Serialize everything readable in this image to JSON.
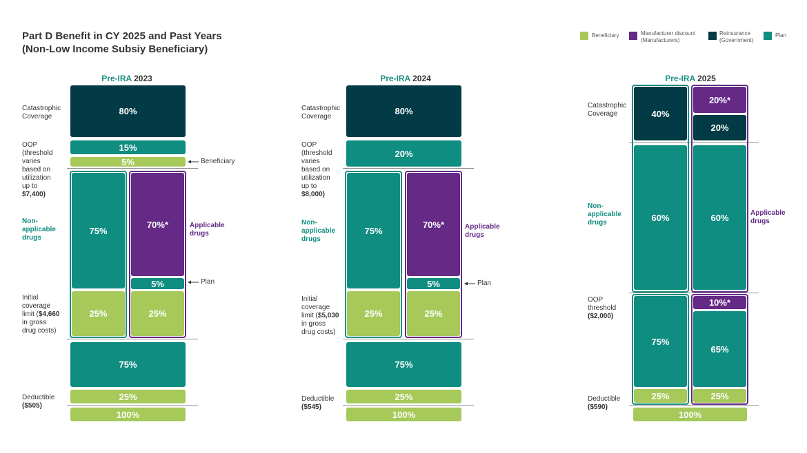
{
  "title": {
    "line1": "Part D Benefit in CY 2025 and Past Years",
    "line2": "(Non-Low Income Subsiy Beneficiary)"
  },
  "legend": [
    {
      "label1": "Beneficiary",
      "label2": "",
      "color": "#a6c95a"
    },
    {
      "label1": "Manufacturer discount",
      "label2": "(Manufacturers)",
      "color": "#642a86"
    },
    {
      "label1": "Reinsurance",
      "label2": "(Government)",
      "color": "#023a45"
    },
    {
      "label1": "Plan",
      "label2": "",
      "color": "#0f8d80"
    }
  ],
  "colors": {
    "beneficiary": "#a6c95a",
    "manufacturer": "#642a86",
    "reinsurance": "#023a45",
    "plan": "#0f8d80"
  },
  "chart_data": {
    "type": "table",
    "title": "Part D Benefit in CY 2025 and Past Years (Non-Low Income Subsiy Beneficiary)",
    "panels": [
      {
        "pre": "Pre-IRA",
        "year": "2023",
        "labels": {
          "catastrophic": "Catastrophic Coverage",
          "oop_lines": [
            "OOP",
            "(threshold",
            "varies",
            "based on",
            "utilization",
            "up to"
          ],
          "oop_amount": "$7,400)",
          "nonapp": "Non-applicable drugs",
          "icl_lines": [
            "Initial",
            "coverage",
            "limit ("
          ],
          "icl_amount": "$4,660",
          "icl_rest": [
            "in gross",
            "drug costs)"
          ],
          "deductible": "Deductible",
          "deductible_amount": "($505)",
          "applicable": "Applicable drugs",
          "ann_beneficiary": "Beneficiary",
          "ann_plan": "Plan"
        },
        "values": {
          "catastrophic_reinsurance": "80%",
          "catastrophic_plan": "15%",
          "catastrophic_beneficiary": "5%",
          "nonapp_plan": "75%",
          "app_manufacturer": "70%*",
          "app_plan": "5%",
          "nonapp_beneficiary": "25%",
          "app_beneficiary": "25%",
          "deductible_plan": "75%",
          "deductible_beneficiary": "25%",
          "below_deductible_beneficiary": "100%"
        }
      },
      {
        "pre": "Pre-IRA",
        "year": "2024",
        "labels": {
          "catastrophic": "Catastrophic Coverage",
          "oop_lines": [
            "OOP",
            "(threshold",
            "varies",
            "based on",
            "utilization",
            "up to"
          ],
          "oop_amount": "$8,000)",
          "nonapp": "Non-applicable drugs",
          "icl_lines": [
            "Initial",
            "coverage",
            "limit ("
          ],
          "icl_amount": "$5,030",
          "icl_rest": [
            "in gross",
            "drug costs)"
          ],
          "deductible": "Deductible",
          "deductible_amount": "($545)",
          "applicable": "Applicable drugs",
          "ann_plan": "Plan"
        },
        "values": {
          "catastrophic_reinsurance": "80%",
          "catastrophic_plan": "20%",
          "nonapp_plan": "75%",
          "app_manufacturer": "70%*",
          "app_plan": "5%",
          "nonapp_beneficiary": "25%",
          "app_beneficiary": "25%",
          "deductible_plan": "75%",
          "deductible_beneficiary": "25%",
          "below_deductible_beneficiary": "100%"
        }
      },
      {
        "pre": "Pre-IRA",
        "year": "2025",
        "labels": {
          "catastrophic": "Catastrophic Coverage",
          "nonapp": "Non-applicable drugs",
          "oop": "OOP",
          "oop_threshold": "threshold",
          "oop_amount": "($2,000)",
          "deductible": "Deductible",
          "deductible_amount": "($590)",
          "applicable": "Applicable drugs"
        },
        "values": {
          "catastrophic_nonapp_reinsurance": "40%",
          "catastrophic_app_manufacturer": "20%*",
          "catastrophic_app_reinsurance": "20%",
          "middle_nonapp_plan": "60%",
          "middle_app_plan": "60%",
          "app_manufacturer": "10%*",
          "initial_nonapp_plan": "75%",
          "initial_app_plan": "65%",
          "initial_nonapp_beneficiary": "25%",
          "initial_app_beneficiary": "25%",
          "below_deductible_beneficiary": "100%"
        }
      }
    ]
  }
}
